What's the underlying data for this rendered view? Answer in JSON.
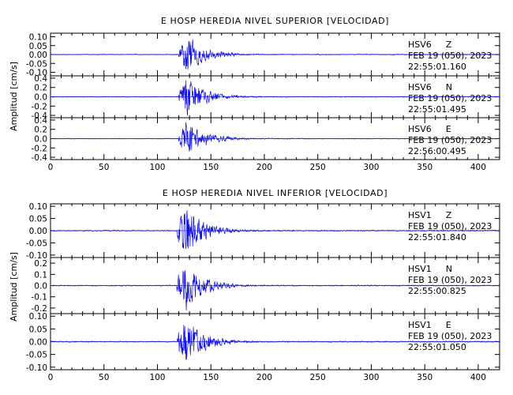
{
  "chart_data": [
    {
      "type": "line",
      "title": "E HOSP HEREDIA NIVEL SUPERIOR [VELOCIDAD]",
      "ylabel": "Amplitud [cm/s]",
      "xlim": [
        0,
        420
      ],
      "xticks": [
        "0",
        "50",
        "100",
        "150",
        "200",
        "250",
        "300",
        "350",
        "400"
      ],
      "onset_s": 120,
      "panels": [
        {
          "station": "HSV6",
          "component": "Z",
          "date": "FEB 19 (050), 2023",
          "time": "22:55:01.160",
          "ylim": [
            -0.12,
            0.12
          ],
          "yticks": [
            "0.10",
            "0.05",
            "0.00",
            "-0.05",
            "-0.10"
          ],
          "peak": 0.11
        },
        {
          "station": "HSV6",
          "component": "N",
          "date": "FEB 19 (050), 2023",
          "time": "22:55:01.495",
          "ylim": [
            -0.45,
            0.45
          ],
          "yticks": [
            "0.4",
            "0.2",
            "0.0",
            "-0.2",
            "-0.4"
          ],
          "peak": 0.42
        },
        {
          "station": "HSV6",
          "component": "E",
          "date": "FEB 19 (050), 2023",
          "time": "22:56:00.495",
          "ylim": [
            -0.45,
            0.45
          ],
          "yticks": [
            "0.4",
            "0.2",
            "0.0",
            "-0.2",
            "-0.4"
          ],
          "peak": 0.4
        }
      ]
    },
    {
      "type": "line",
      "title": "E HOSP HEREDIA NIVEL INFERIOR [VELOCIDAD]",
      "ylabel": "Amplitud [cm/s]",
      "xlim": [
        0,
        420
      ],
      "xticks": [
        "0",
        "50",
        "100",
        "150",
        "200",
        "250",
        "300",
        "350",
        "400"
      ],
      "onset_s": 118,
      "panels": [
        {
          "station": "HSV1",
          "component": "Z",
          "date": "FEB 19 (050), 2023",
          "time": "22:55:01.840",
          "ylim": [
            -0.11,
            0.11
          ],
          "yticks": [
            "0.10",
            "0.05",
            "0.00",
            "-0.05",
            "-0.10"
          ],
          "peak": 0.11
        },
        {
          "station": "HSV1",
          "component": "N",
          "date": "FEB 19 (050), 2023",
          "time": "22:55:00.825",
          "ylim": [
            -0.25,
            0.25
          ],
          "yticks": [
            "0.2",
            "0.1",
            "0.0",
            "-0.1",
            "-0.2"
          ],
          "peak": 0.22
        },
        {
          "station": "HSV1",
          "component": "E",
          "date": "FEB 19 (050), 2023",
          "time": "22:55:01.050",
          "ylim": [
            -0.11,
            0.11
          ],
          "yticks": [
            "0.10",
            "0.05",
            "0.00",
            "-0.05",
            "-0.10"
          ],
          "peak": 0.1
        }
      ]
    }
  ],
  "colors": {
    "trace": "#1010e0",
    "axes": "#000000"
  }
}
